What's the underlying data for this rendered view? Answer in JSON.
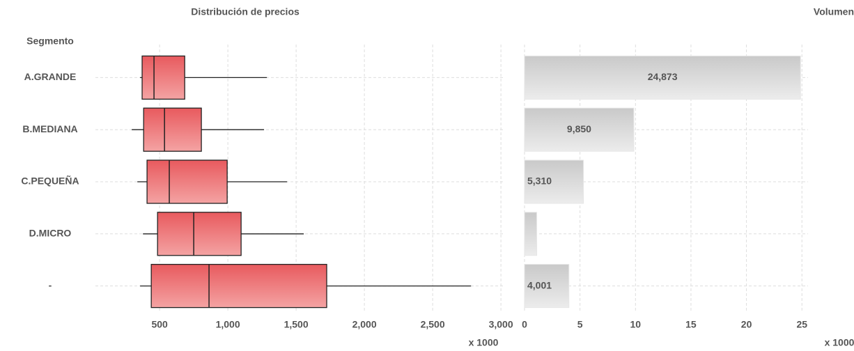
{
  "chart_data": [
    {
      "type": "box",
      "title": "Distribución de precios",
      "y_label": "Segmento",
      "x_label": "x 1000",
      "categories": [
        "A.GRANDE",
        "B.MEDIANA",
        "C.PEQUEÑA",
        "D.MICRO",
        "-"
      ],
      "whisker_low": [
        357,
        296,
        337,
        378,
        357
      ],
      "q1": [
        372,
        383,
        408,
        485,
        439
      ],
      "median": [
        459,
        536,
        571,
        750,
        862
      ],
      "q3": [
        684,
        806,
        995,
        1097,
        1724
      ],
      "whisker_high": [
        1286,
        1265,
        1434,
        1556,
        2781
      ],
      "color": "#e8585c",
      "xlim": [
        30,
        3030
      ],
      "xticks": [
        500,
        {
          "value": 1000,
          "label": "1,000"
        },
        {
          "value": 1500,
          "label": "1,500"
        },
        {
          "value": 2000,
          "label": "2,000"
        },
        {
          "value": 2500,
          "label": "2,500"
        },
        {
          "value": 3000,
          "label": "3,000"
        }
      ],
      "grid": true
    },
    {
      "type": "bar",
      "title": "Volumen",
      "x_label": "x 1000",
      "values": [
        24.873,
        9.85,
        5.31,
        1.1,
        4.001
      ],
      "value_labels": [
        "24,873",
        "9,850",
        "5,310",
        null,
        "4,001"
      ],
      "color": "#d4d4d4",
      "xlim": [
        0,
        25.55
      ],
      "xticks": [
        0,
        5,
        10,
        15,
        20,
        25
      ],
      "grid": true
    }
  ]
}
